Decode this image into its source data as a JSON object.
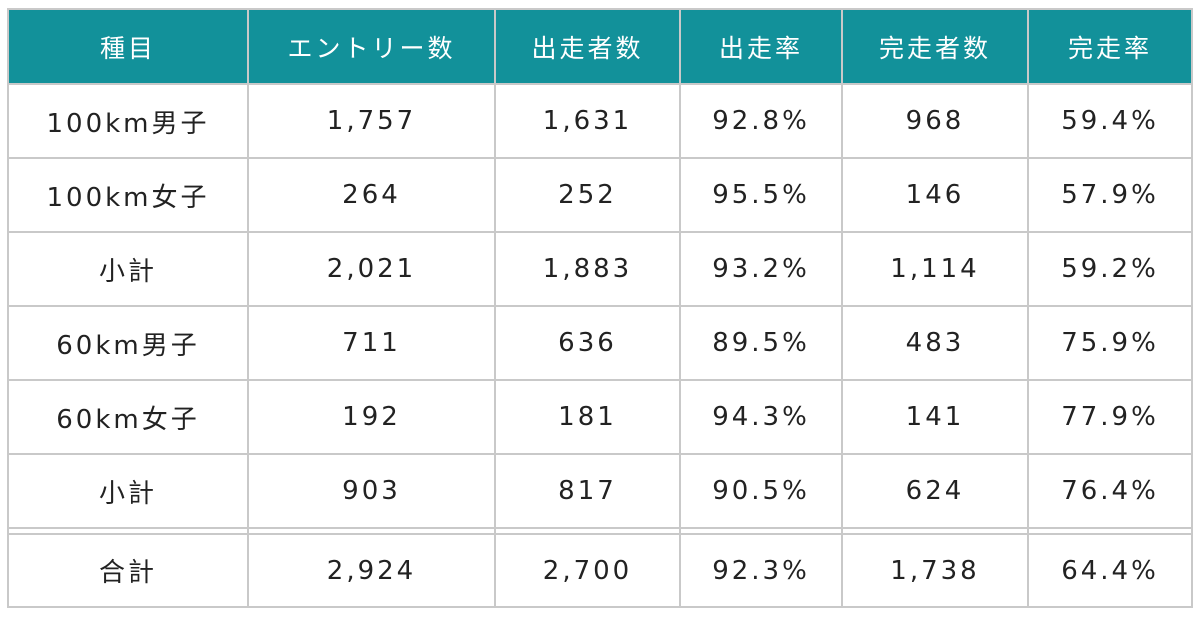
{
  "table": {
    "headers": [
      "種目",
      "エントリー数",
      "出走者数",
      "出走率",
      "完走者数",
      "完走率"
    ],
    "rows": [
      [
        "100km男子",
        "1,757",
        "1,631",
        "92.8%",
        "968",
        "59.4%"
      ],
      [
        "100km女子",
        "264",
        "252",
        "95.5%",
        "146",
        "57.9%"
      ],
      [
        "小計",
        "2,021",
        "1,883",
        "93.2%",
        "1,114",
        "59.2%"
      ],
      [
        "60km男子",
        "711",
        "636",
        "89.5%",
        "483",
        "75.9%"
      ],
      [
        "60km女子",
        "192",
        "181",
        "94.3%",
        "141",
        "77.9%"
      ],
      [
        "小計",
        "903",
        "817",
        "90.5%",
        "624",
        "76.4%"
      ]
    ],
    "total": [
      "合計",
      "2,924",
      "2,700",
      "92.3%",
      "1,738",
      "64.4%"
    ]
  },
  "colors": {
    "header_bg": "#12919a",
    "header_text": "#ffffff",
    "border": "#c9c9c9"
  }
}
